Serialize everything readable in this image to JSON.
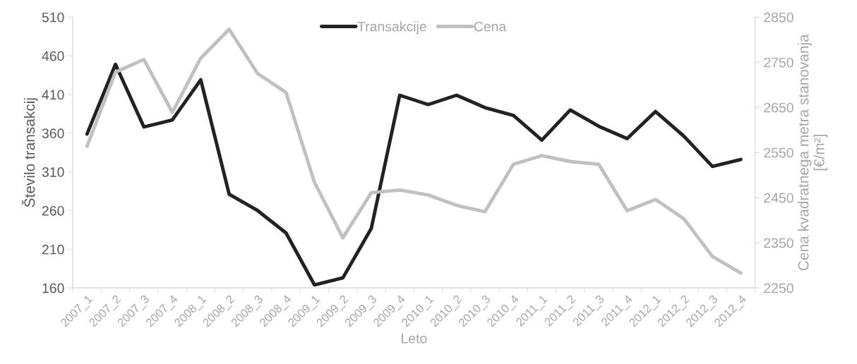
{
  "chart_data": {
    "type": "line",
    "xlabel": "Leto",
    "ylabel": "Število transakcij",
    "y2label": "Cena kvadratnega metra stanovanja\n[€/m²]",
    "categories": [
      "2007_1",
      "2007_2",
      "2007_3",
      "2007_4",
      "2008_1",
      "2008_2",
      "2008_3",
      "2008_4",
      "2009_1",
      "2009_2",
      "2009_3",
      "2009_4",
      "2010_1",
      "2010_2",
      "2010_3",
      "2010_4",
      "2011_1",
      "2011_2",
      "2011_3",
      "2011_4",
      "2012_1",
      "2012_2",
      "2012_3",
      "2012_4"
    ],
    "series": [
      {
        "name": "Transakcije",
        "color": "#222222",
        "values": [
          359,
          449,
          368,
          377,
          429,
          281,
          260,
          231,
          164,
          173,
          237,
          409,
          397,
          409,
          393,
          383,
          351,
          390,
          369,
          353,
          388,
          356,
          317,
          326
        ]
      },
      {
        "name": "Cena",
        "color": "#c0c0c0",
        "axis": "y2",
        "values": [
          2564,
          2728,
          2756,
          2639,
          2759,
          2823,
          2725,
          2683,
          2484,
          2361,
          2461,
          2467,
          2456,
          2433,
          2419,
          2524,
          2543,
          2530,
          2524,
          2421,
          2446,
          2403,
          2320,
          2283
        ]
      }
    ],
    "ylim": [
      160,
      510
    ],
    "yticks": [
      160,
      210,
      260,
      310,
      360,
      410,
      460,
      510
    ],
    "y2lim": [
      2250,
      2850
    ],
    "y2ticks": [
      2250,
      2350,
      2450,
      2550,
      2650,
      2750,
      2850
    ],
    "legend": "top",
    "grid": false,
    "marker": "none",
    "line_style": "solid"
  }
}
